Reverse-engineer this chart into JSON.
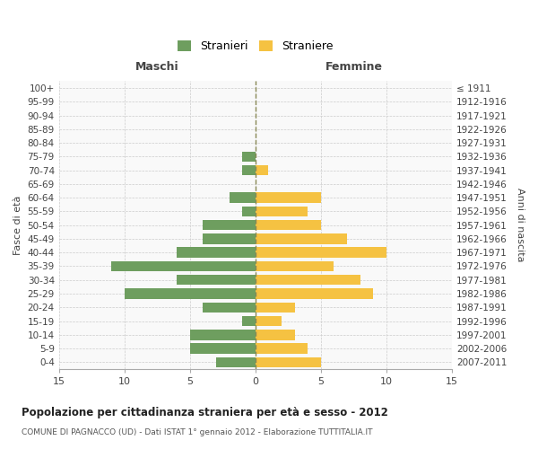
{
  "age_groups": [
    "0-4",
    "5-9",
    "10-14",
    "15-19",
    "20-24",
    "25-29",
    "30-34",
    "35-39",
    "40-44",
    "45-49",
    "50-54",
    "55-59",
    "60-64",
    "65-69",
    "70-74",
    "75-79",
    "80-84",
    "85-89",
    "90-94",
    "95-99",
    "100+"
  ],
  "birth_years": [
    "2007-2011",
    "2002-2006",
    "1997-2001",
    "1992-1996",
    "1987-1991",
    "1982-1986",
    "1977-1981",
    "1972-1976",
    "1967-1971",
    "1962-1966",
    "1957-1961",
    "1952-1956",
    "1947-1951",
    "1942-1946",
    "1937-1941",
    "1932-1936",
    "1927-1931",
    "1922-1926",
    "1917-1921",
    "1912-1916",
    "≤ 1911"
  ],
  "maschi": [
    3,
    5,
    5,
    1,
    4,
    10,
    6,
    11,
    6,
    4,
    4,
    1,
    2,
    0,
    1,
    1,
    0,
    0,
    0,
    0,
    0
  ],
  "femmine": [
    5,
    4,
    3,
    2,
    3,
    9,
    8,
    6,
    10,
    7,
    5,
    4,
    5,
    0,
    1,
    0,
    0,
    0,
    0,
    0,
    0
  ],
  "maschi_color": "#6e9e5f",
  "femmine_color": "#f5c242",
  "background_color": "#ffffff",
  "grid_color": "#cccccc",
  "title": "Popolazione per cittadinanza straniera per età e sesso - 2012",
  "subtitle": "COMUNE DI PAGNACCO (UD) - Dati ISTAT 1° gennaio 2012 - Elaborazione TUTTITALIA.IT",
  "xlabel_left": "Maschi",
  "xlabel_right": "Femmine",
  "ylabel_left": "Fasce di età",
  "ylabel_right": "Anni di nascita",
  "legend_stranieri": "Stranieri",
  "legend_straniere": "Straniere",
  "xlim": 15,
  "bar_height": 0.75
}
